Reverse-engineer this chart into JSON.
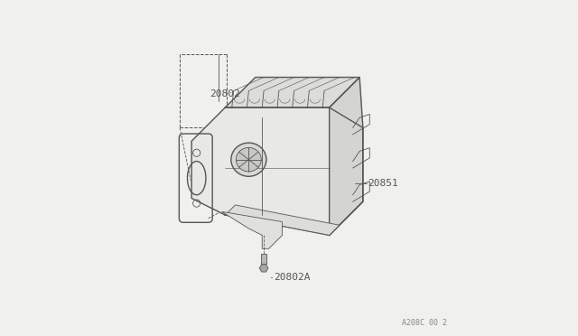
{
  "bg_color": "#f0f0ec",
  "line_color": "#555555",
  "label_color": "#555555",
  "diagram_code": "A208C 00 2",
  "label_20802": [
    0.265,
    0.72
  ],
  "label_20851": [
    0.735,
    0.455
  ],
  "label_20802A": [
    0.455,
    0.175
  ]
}
